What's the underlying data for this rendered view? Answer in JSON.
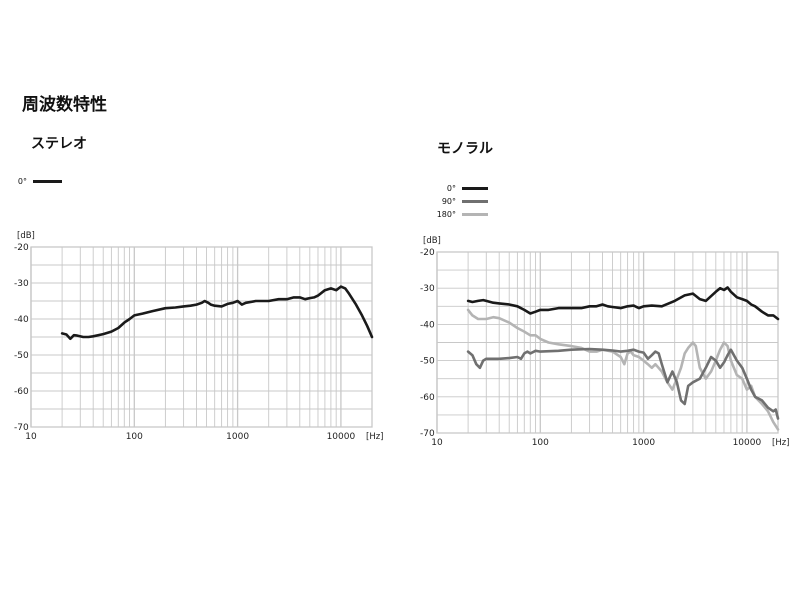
{
  "page": {
    "title": "周波数特性"
  },
  "colors": {
    "black": "#1a1a1a",
    "gray": "#707070",
    "light_gray": "#b4b4b4",
    "grid": "#c8c8c8"
  },
  "chart_data": [
    {
      "id": "stereo",
      "type": "line",
      "title": "ステレオ",
      "xlabel": "[Hz]",
      "ylabel": "[dB]",
      "x_scale": "log",
      "xlim": [
        10,
        20000
      ],
      "ylim": [
        -70,
        -20
      ],
      "x_ticks": [
        10,
        100,
        1000,
        10000
      ],
      "x_tick_labels": [
        "10",
        "100",
        "1000",
        "10000"
      ],
      "y_ticks": [
        -20,
        -30,
        -40,
        -50,
        -60,
        -70
      ],
      "y_tick_labels": [
        "-20",
        "-30",
        "-40",
        "-50",
        "-60",
        "-70"
      ],
      "grid": true,
      "legend": [
        {
          "label": "0°",
          "color": "#1a1a1a"
        }
      ],
      "series": [
        {
          "name": "0°",
          "color": "#1a1a1a",
          "points": [
            [
              20,
              -44
            ],
            [
              22,
              -44.3
            ],
            [
              24,
              -45.5
            ],
            [
              26,
              -44.5
            ],
            [
              28,
              -44.6
            ],
            [
              32,
              -45
            ],
            [
              36,
              -45
            ],
            [
              40,
              -44.8
            ],
            [
              50,
              -44.2
            ],
            [
              60,
              -43.5
            ],
            [
              70,
              -42.5
            ],
            [
              80,
              -41
            ],
            [
              90,
              -40
            ],
            [
              100,
              -39
            ],
            [
              120,
              -38.5
            ],
            [
              150,
              -37.8
            ],
            [
              200,
              -37
            ],
            [
              250,
              -36.8
            ],
            [
              300,
              -36.5
            ],
            [
              350,
              -36.3
            ],
            [
              400,
              -36
            ],
            [
              450,
              -35.5
            ],
            [
              480,
              -35
            ],
            [
              520,
              -35.5
            ],
            [
              550,
              -36
            ],
            [
              600,
              -36.3
            ],
            [
              700,
              -36.5
            ],
            [
              800,
              -35.8
            ],
            [
              900,
              -35.5
            ],
            [
              1000,
              -35
            ],
            [
              1100,
              -36
            ],
            [
              1200,
              -35.5
            ],
            [
              1500,
              -35
            ],
            [
              2000,
              -35
            ],
            [
              2500,
              -34.5
            ],
            [
              3000,
              -34.5
            ],
            [
              3500,
              -34
            ],
            [
              4000,
              -34
            ],
            [
              4500,
              -34.5
            ],
            [
              5000,
              -34.2
            ],
            [
              5500,
              -34
            ],
            [
              6000,
              -33.5
            ],
            [
              7000,
              -32
            ],
            [
              8000,
              -31.5
            ],
            [
              9000,
              -32
            ],
            [
              10000,
              -31
            ],
            [
              11000,
              -31.5
            ],
            [
              12000,
              -33
            ],
            [
              14000,
              -36
            ],
            [
              16000,
              -39
            ],
            [
              18000,
              -42
            ],
            [
              20000,
              -45
            ]
          ]
        }
      ]
    },
    {
      "id": "mono",
      "type": "line",
      "title": "モノラル",
      "xlabel": "[Hz]",
      "ylabel": "[dB]",
      "x_scale": "log",
      "xlim": [
        10,
        20000
      ],
      "ylim": [
        -70,
        -20
      ],
      "x_ticks": [
        10,
        100,
        1000,
        10000
      ],
      "x_tick_labels": [
        "10",
        "100",
        "1000",
        "10000"
      ],
      "y_ticks": [
        -20,
        -30,
        -40,
        -50,
        -60,
        -70
      ],
      "y_tick_labels": [
        "-20",
        "-30",
        "-40",
        "-50",
        "-60",
        "-70"
      ],
      "grid": true,
      "legend": [
        {
          "label": "0°",
          "color": "#1a1a1a"
        },
        {
          "label": "90°",
          "color": "#707070"
        },
        {
          "label": "180°",
          "color": "#b4b4b4"
        }
      ],
      "series": [
        {
          "name": "0°",
          "color": "#1a1a1a",
          "points": [
            [
              20,
              -33.5
            ],
            [
              22,
              -33.8
            ],
            [
              25,
              -33.5
            ],
            [
              28,
              -33.3
            ],
            [
              30,
              -33.5
            ],
            [
              35,
              -34
            ],
            [
              40,
              -34.2
            ],
            [
              50,
              -34.5
            ],
            [
              60,
              -35
            ],
            [
              70,
              -36
            ],
            [
              80,
              -37
            ],
            [
              90,
              -36.5
            ],
            [
              100,
              -36
            ],
            [
              120,
              -36
            ],
            [
              150,
              -35.5
            ],
            [
              200,
              -35.5
            ],
            [
              250,
              -35.5
            ],
            [
              300,
              -35
            ],
            [
              350,
              -35
            ],
            [
              400,
              -34.5
            ],
            [
              450,
              -35
            ],
            [
              500,
              -35.2
            ],
            [
              600,
              -35.5
            ],
            [
              700,
              -35
            ],
            [
              800,
              -34.8
            ],
            [
              900,
              -35.5
            ],
            [
              1000,
              -35
            ],
            [
              1200,
              -34.8
            ],
            [
              1500,
              -35
            ],
            [
              2000,
              -33.5
            ],
            [
              2500,
              -32
            ],
            [
              3000,
              -31.5
            ],
            [
              3500,
              -33
            ],
            [
              4000,
              -33.5
            ],
            [
              5000,
              -31
            ],
            [
              5500,
              -30
            ],
            [
              6000,
              -30.5
            ],
            [
              6500,
              -29.8
            ],
            [
              7000,
              -31
            ],
            [
              8000,
              -32.5
            ],
            [
              9000,
              -33
            ],
            [
              10000,
              -33.5
            ],
            [
              11000,
              -34.5
            ],
            [
              12000,
              -35
            ],
            [
              14000,
              -36.5
            ],
            [
              16000,
              -37.5
            ],
            [
              18000,
              -37.5
            ],
            [
              20000,
              -38.5
            ]
          ]
        },
        {
          "name": "90°",
          "color": "#707070",
          "points": [
            [
              20,
              -47.5
            ],
            [
              22,
              -48.5
            ],
            [
              24,
              -51
            ],
            [
              26,
              -52
            ],
            [
              28,
              -50
            ],
            [
              30,
              -49.5
            ],
            [
              40,
              -49.5
            ],
            [
              50,
              -49.3
            ],
            [
              60,
              -49
            ],
            [
              65,
              -49.5
            ],
            [
              70,
              -48
            ],
            [
              75,
              -47.5
            ],
            [
              80,
              -48
            ],
            [
              90,
              -47.3
            ],
            [
              100,
              -47.5
            ],
            [
              150,
              -47.3
            ],
            [
              200,
              -47
            ],
            [
              300,
              -46.8
            ],
            [
              400,
              -47
            ],
            [
              500,
              -47.2
            ],
            [
              600,
              -47.5
            ],
            [
              700,
              -47.3
            ],
            [
              800,
              -47
            ],
            [
              900,
              -47.5
            ],
            [
              1000,
              -47.8
            ],
            [
              1100,
              -49.5
            ],
            [
              1200,
              -48.5
            ],
            [
              1300,
              -47.5
            ],
            [
              1400,
              -48
            ],
            [
              1500,
              -51
            ],
            [
              1700,
              -56
            ],
            [
              1900,
              -53
            ],
            [
              2100,
              -56
            ],
            [
              2300,
              -61
            ],
            [
              2500,
              -62
            ],
            [
              2700,
              -57
            ],
            [
              3000,
              -56
            ],
            [
              3500,
              -55
            ],
            [
              4000,
              -52
            ],
            [
              4500,
              -49
            ],
            [
              5000,
              -50
            ],
            [
              5500,
              -52
            ],
            [
              6000,
              -50.5
            ],
            [
              6500,
              -48.5
            ],
            [
              7000,
              -47
            ],
            [
              8000,
              -50
            ],
            [
              9000,
              -52
            ],
            [
              10000,
              -55
            ],
            [
              11000,
              -58
            ],
            [
              12000,
              -60
            ],
            [
              14000,
              -61
            ],
            [
              16000,
              -63
            ],
            [
              18000,
              -64
            ],
            [
              19000,
              -63.5
            ],
            [
              20000,
              -66
            ]
          ]
        },
        {
          "name": "180°",
          "color": "#b4b4b4",
          "points": [
            [
              20,
              -36
            ],
            [
              22,
              -37.5
            ],
            [
              25,
              -38.5
            ],
            [
              30,
              -38.5
            ],
            [
              35,
              -38
            ],
            [
              40,
              -38.3
            ],
            [
              50,
              -39.5
            ],
            [
              60,
              -41
            ],
            [
              70,
              -42
            ],
            [
              80,
              -43
            ],
            [
              90,
              -43
            ],
            [
              100,
              -44
            ],
            [
              120,
              -45
            ],
            [
              150,
              -45.5
            ],
            [
              200,
              -46
            ],
            [
              250,
              -46.5
            ],
            [
              300,
              -47.5
            ],
            [
              350,
              -47.5
            ],
            [
              400,
              -47
            ],
            [
              500,
              -47.5
            ],
            [
              600,
              -49
            ],
            [
              650,
              -51
            ],
            [
              700,
              -48
            ],
            [
              750,
              -47.5
            ],
            [
              800,
              -48.5
            ],
            [
              900,
              -49
            ],
            [
              1000,
              -50
            ],
            [
              1100,
              -51
            ],
            [
              1200,
              -52
            ],
            [
              1300,
              -51
            ],
            [
              1500,
              -53
            ],
            [
              1700,
              -56
            ],
            [
              1900,
              -58
            ],
            [
              2100,
              -55
            ],
            [
              2300,
              -52
            ],
            [
              2500,
              -48
            ],
            [
              2700,
              -46.5
            ],
            [
              3000,
              -45
            ],
            [
              3200,
              -46
            ],
            [
              3500,
              -52
            ],
            [
              4000,
              -55
            ],
            [
              4500,
              -53
            ],
            [
              5000,
              -50
            ],
            [
              5500,
              -47
            ],
            [
              6000,
              -45
            ],
            [
              6500,
              -46
            ],
            [
              7000,
              -50
            ],
            [
              8000,
              -54
            ],
            [
              9000,
              -55
            ],
            [
              10000,
              -58
            ],
            [
              11000,
              -57
            ],
            [
              12000,
              -60
            ],
            [
              14000,
              -62
            ],
            [
              16000,
              -64
            ],
            [
              18000,
              -67
            ],
            [
              20000,
              -69
            ]
          ]
        }
      ]
    }
  ]
}
